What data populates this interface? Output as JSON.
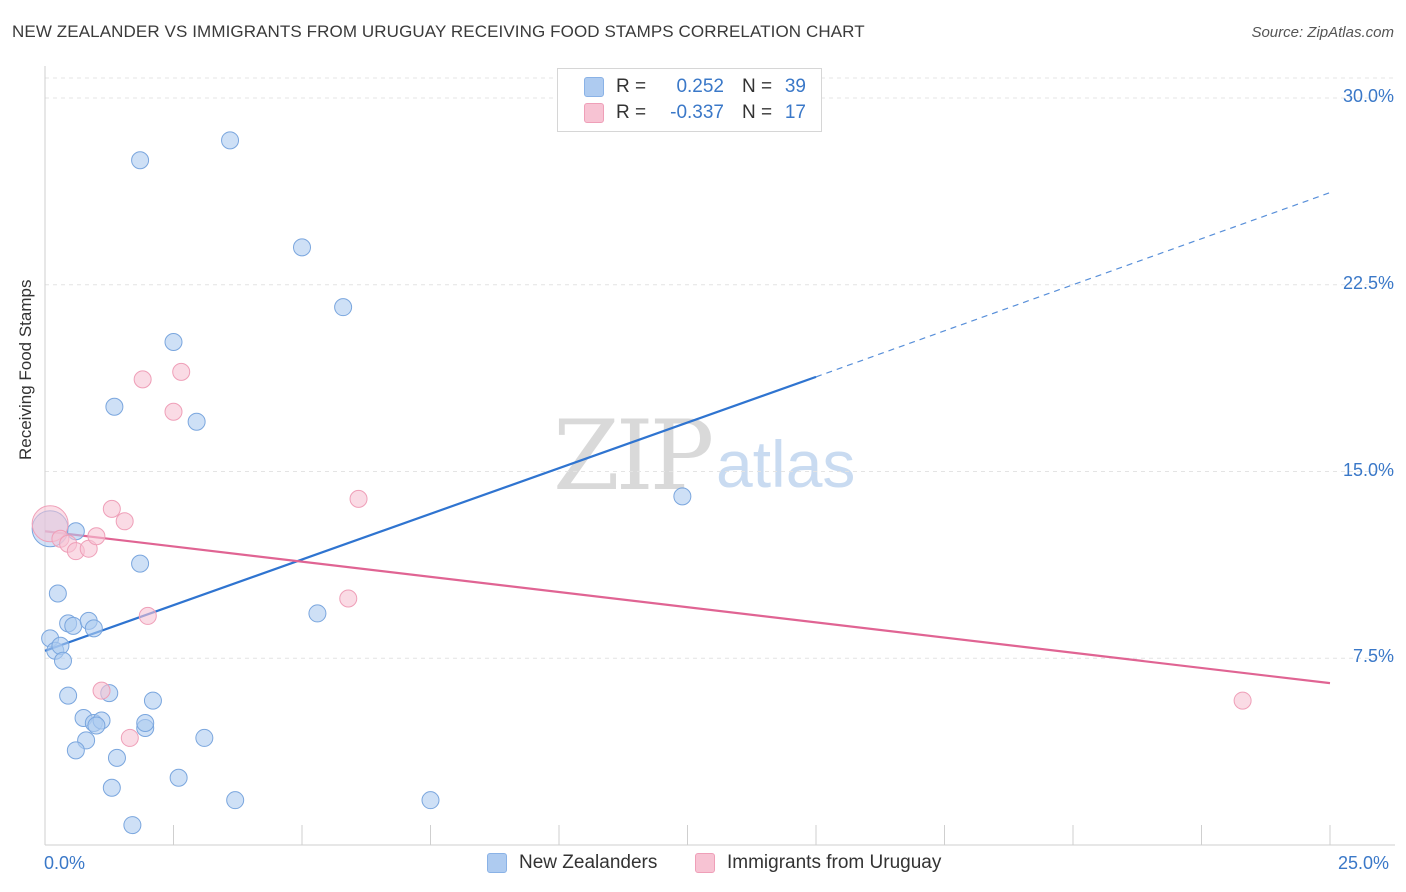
{
  "header": {
    "title": "NEW ZEALANDER VS IMMIGRANTS FROM URUGUAY RECEIVING FOOD STAMPS CORRELATION CHART",
    "source": "Source: ZipAtlas.com"
  },
  "legend": {
    "rows": [
      {
        "r_label": "R =",
        "r_value": "0.252",
        "n_label": "N =",
        "n_value": "39",
        "color": "#aecbf0",
        "border": "#8ab2e6"
      },
      {
        "r_label": "R =",
        "r_value": "-0.337",
        "n_label": "N =",
        "n_value": "17",
        "color": "#f7c3d3",
        "border": "#ef9fb8"
      }
    ]
  },
  "watermark": {
    "zip": "ZIP",
    "atlas": "atlas"
  },
  "chart_data": {
    "type": "scatter",
    "title": "NEW ZEALANDER VS IMMIGRANTS FROM URUGUAY RECEIVING FOOD STAMPS CORRELATION CHART",
    "xlabel": "",
    "ylabel": "Receiving Food Stamps",
    "xlim": [
      0,
      25
    ],
    "ylim": [
      0,
      30
    ],
    "x_tick_labels": [
      "0.0%",
      "25.0%"
    ],
    "y_ticks": [
      7.5,
      15.0,
      22.5,
      30.0
    ],
    "y_tick_labels": [
      "7.5%",
      "15.0%",
      "22.5%",
      "30.0%"
    ],
    "grid": true,
    "legend_position": "bottom",
    "series": [
      {
        "name": "New Zealanders",
        "color": "#aecbf0",
        "stroke": "#7aa6de",
        "line_color": "#2f74d0",
        "trend": {
          "x0": 0,
          "y0": 7.8,
          "x1": 15,
          "y1": 18.8,
          "dash_to_x": 25,
          "dash_to_y": 26.2
        },
        "points": [
          [
            0.1,
            12.7
          ],
          [
            0.6,
            12.6
          ],
          [
            0.1,
            8.3
          ],
          [
            0.2,
            7.8
          ],
          [
            0.3,
            8.0
          ],
          [
            0.35,
            7.4
          ],
          [
            0.25,
            10.1
          ],
          [
            0.45,
            8.9
          ],
          [
            0.55,
            8.8
          ],
          [
            0.85,
            9.0
          ],
          [
            0.95,
            8.7
          ],
          [
            1.85,
            27.5
          ],
          [
            3.6,
            28.3
          ],
          [
            5.0,
            24.0
          ],
          [
            5.8,
            21.6
          ],
          [
            2.5,
            20.2
          ],
          [
            1.35,
            17.6
          ],
          [
            2.95,
            17.0
          ],
          [
            1.85,
            11.3
          ],
          [
            12.4,
            14.0
          ],
          [
            5.3,
            9.3
          ],
          [
            0.45,
            6.0
          ],
          [
            1.25,
            6.1
          ],
          [
            2.1,
            5.8
          ],
          [
            0.75,
            5.1
          ],
          [
            0.95,
            4.9
          ],
          [
            1.1,
            5.0
          ],
          [
            1.95,
            4.7
          ],
          [
            1.95,
            4.9
          ],
          [
            3.1,
            4.3
          ],
          [
            0.8,
            4.2
          ],
          [
            0.6,
            3.8
          ],
          [
            1.4,
            3.5
          ],
          [
            2.6,
            2.7
          ],
          [
            1.3,
            2.3
          ],
          [
            3.7,
            1.8
          ],
          [
            7.5,
            1.8
          ],
          [
            1.7,
            0.8
          ],
          [
            1.0,
            4.8
          ]
        ]
      },
      {
        "name": "Immigrants from Uruguay",
        "color": "#f7c3d3",
        "stroke": "#ef9fb8",
        "line_color": "#e06493",
        "trend": {
          "x0": 0,
          "y0": 12.6,
          "x1": 25,
          "y1": 6.5
        },
        "points": [
          [
            0.1,
            12.9
          ],
          [
            0.3,
            12.3
          ],
          [
            0.45,
            12.1
          ],
          [
            0.6,
            11.8
          ],
          [
            0.85,
            11.9
          ],
          [
            1.0,
            12.4
          ],
          [
            1.3,
            13.5
          ],
          [
            1.55,
            13.0
          ],
          [
            1.9,
            18.7
          ],
          [
            2.65,
            19.0
          ],
          [
            2.5,
            17.4
          ],
          [
            6.1,
            13.9
          ],
          [
            5.9,
            9.9
          ],
          [
            2.0,
            9.2
          ],
          [
            1.1,
            6.2
          ],
          [
            1.65,
            4.3
          ],
          [
            23.3,
            5.8
          ]
        ]
      }
    ]
  }
}
